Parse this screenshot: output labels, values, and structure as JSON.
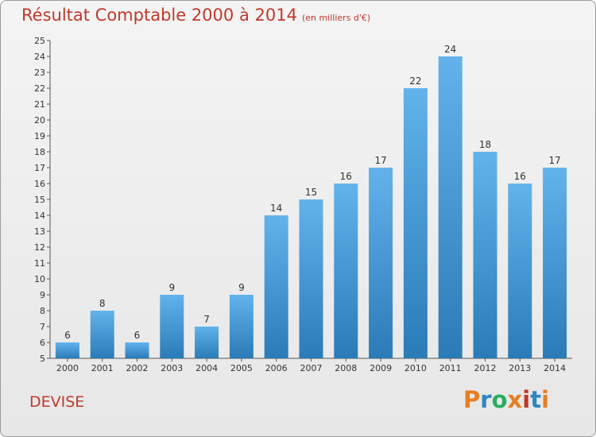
{
  "header": {
    "title": "Résultat Comptable 2000 à 2014",
    "subtitle": "(en milliers d'€)"
  },
  "footer": {
    "commune": "DEVISE",
    "logo_text": "Proxiti",
    "logo_colors": [
      "#e67e22",
      "#2e86c1",
      "#27ae60",
      "#e67e22",
      "#c0392b",
      "#2e86c1",
      "#e67e22"
    ]
  },
  "colors": {
    "title": "#c0392b",
    "bar_top": "#62b3ec",
    "bar_bottom": "#2a7bb7",
    "axis": "#555555",
    "text": "#333333"
  },
  "chart_data": {
    "type": "bar",
    "title": "Résultat Comptable 2000 à 2014",
    "xlabel": "",
    "ylabel": "",
    "ylim": [
      5,
      25
    ],
    "yticks": [
      5,
      6,
      7,
      8,
      9,
      10,
      11,
      12,
      13,
      14,
      15,
      16,
      17,
      18,
      19,
      20,
      21,
      22,
      23,
      24,
      25
    ],
    "categories": [
      "2000",
      "2001",
      "2002",
      "2003",
      "2004",
      "2005",
      "2006",
      "2007",
      "2008",
      "2009",
      "2010",
      "2011",
      "2012",
      "2013",
      "2014"
    ],
    "values": [
      6,
      8,
      6,
      9,
      7,
      9,
      14,
      15,
      16,
      17,
      22,
      24,
      18,
      16,
      17
    ],
    "data_labels": [
      "6",
      "8",
      "6",
      "9",
      "7",
      "9",
      "14",
      "15",
      "16",
      "17",
      "22",
      "24",
      "18",
      "16",
      "17"
    ],
    "grid": false,
    "legend": "none"
  }
}
